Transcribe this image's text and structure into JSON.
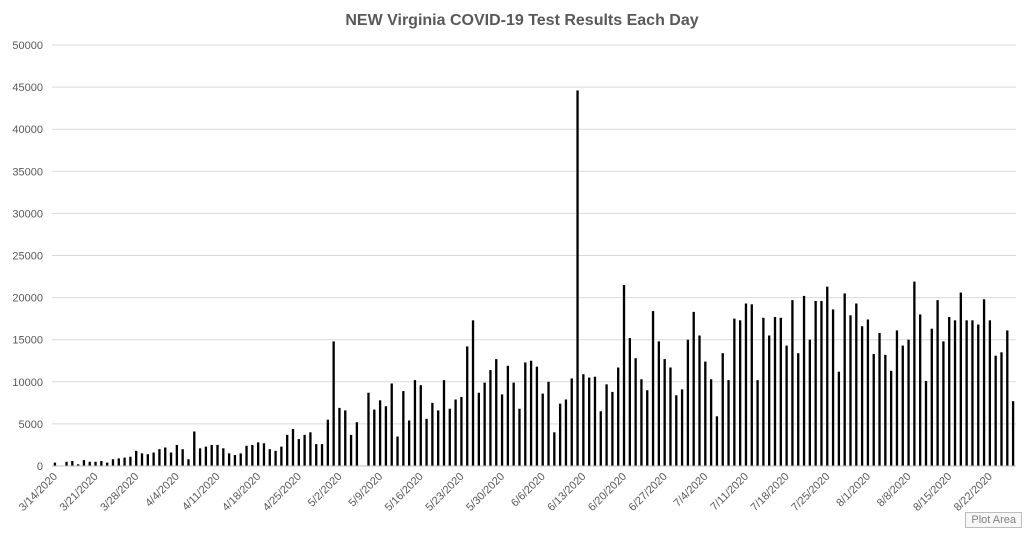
{
  "tooltip": "Plot Area",
  "chart_data": {
    "type": "bar",
    "title": "NEW Virginia COVID-19 Test Results Each Day",
    "xlabel": "",
    "ylabel": "",
    "ylim": [
      0,
      50000
    ],
    "yticks": [
      0,
      5000,
      10000,
      15000,
      20000,
      25000,
      30000,
      35000,
      40000,
      45000,
      50000
    ],
    "grid": true,
    "legend": "none",
    "bar_color": "#000000",
    "x_tick_labels": [
      "3/14/2020",
      "3/21/2020",
      "3/28/2020",
      "4/4/2020",
      "4/11/2020",
      "4/18/2020",
      "4/25/2020",
      "5/2/2020",
      "5/9/2020",
      "5/16/2020",
      "5/23/2020",
      "5/30/2020",
      "6/6/2020",
      "6/13/2020",
      "6/20/2020",
      "6/27/2020",
      "7/4/2020",
      "7/11/2020",
      "7/18/2020",
      "7/25/2020",
      "8/1/2020",
      "8/8/2020",
      "8/15/2020",
      "8/22/2020"
    ],
    "start_date": "3/14/2020",
    "values": [
      400,
      0,
      500,
      600,
      200,
      700,
      500,
      500,
      600,
      400,
      800,
      900,
      1000,
      1100,
      1800,
      1500,
      1400,
      1600,
      2000,
      2200,
      1600,
      2500,
      2000,
      800,
      4100,
      2100,
      2300,
      2500,
      2500,
      2100,
      1500,
      1300,
      1500,
      2400,
      2500,
      2800,
      2700,
      2000,
      1800,
      2300,
      3700,
      4400,
      3200,
      3700,
      4000,
      2600,
      2600,
      5500,
      14800,
      6900,
      6600,
      3700,
      5200,
      0,
      8700,
      6700,
      7800,
      7100,
      9800,
      3500,
      8900,
      5400,
      10200,
      9600,
      5600,
      7500,
      6600,
      10200,
      6800,
      7900,
      8200,
      14200,
      17300,
      8700,
      9900,
      11400,
      12700,
      8500,
      11900,
      9900,
      6800,
      12300,
      12500,
      11800,
      8600,
      10000,
      4000,
      7400,
      7900,
      10400,
      44600,
      10900,
      10500,
      10600,
      6500,
      9700,
      8800,
      11700,
      21500,
      15200,
      12800,
      10300,
      9000,
      18400,
      14800,
      12700,
      11700,
      8400,
      9100,
      15000,
      18300,
      15500,
      12400,
      10300,
      5900,
      13400,
      10200,
      17500,
      17300,
      19300,
      19200,
      10200,
      17600,
      15500,
      17700,
      17600,
      14300,
      19700,
      13400,
      20200,
      15000,
      19600,
      19600,
      21300,
      18600,
      11200,
      20500,
      17900,
      19300,
      16600,
      17400,
      13300,
      15800,
      13200,
      11300,
      16100,
      14300,
      15000,
      21900,
      18000,
      10100,
      16300,
      19700,
      14800,
      17700,
      17300,
      20600,
      17300,
      17300,
      16800,
      19800,
      17300,
      13100,
      13500,
      16100,
      7700
    ]
  }
}
